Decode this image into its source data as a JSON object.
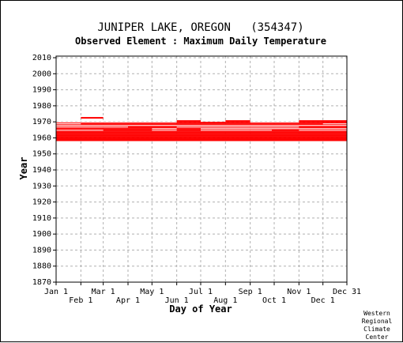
{
  "chart_data": {
    "type": "heatmap",
    "title": "JUNIPER LAKE, OREGON   (354347)",
    "subtitle": "Observed Element : Maximum Daily Temperature",
    "xlabel": "Day of Year",
    "ylabel": "Year",
    "xlim": [
      1,
      365
    ],
    "ylim": [
      1870,
      2011
    ],
    "grid": true,
    "x_ticks_upper": [
      {
        "label": "Jan 1",
        "day": 1
      },
      {
        "label": "Mar 1",
        "day": 60
      },
      {
        "label": "May 1",
        "day": 121
      },
      {
        "label": "Jul 1",
        "day": 182
      },
      {
        "label": "Sep 1",
        "day": 244
      },
      {
        "label": "Nov 1",
        "day": 305
      },
      {
        "label": "Dec 31",
        "day": 365
      }
    ],
    "x_ticks_lower": [
      {
        "label": "Feb 1",
        "day": 32
      },
      {
        "label": "Apr 1",
        "day": 91
      },
      {
        "label": "Jun 1",
        "day": 152
      },
      {
        "label": "Aug 1",
        "day": 213
      },
      {
        "label": "Oct 1",
        "day": 274
      },
      {
        "label": "Dec 1",
        "day": 335
      }
    ],
    "y_ticks": [
      1870,
      1880,
      1890,
      1900,
      1910,
      1920,
      1930,
      1940,
      1950,
      1960,
      1970,
      1980,
      1990,
      2000,
      2010
    ],
    "mark_color": "#ff0000",
    "observed_segments": [
      {
        "year": 1972,
        "start_day": 32,
        "end_day": 59
      },
      {
        "year": 1970,
        "start_day": 152,
        "end_day": 181
      },
      {
        "year": 1970,
        "start_day": 213,
        "end_day": 243
      },
      {
        "year": 1970,
        "start_day": 305,
        "end_day": 365
      },
      {
        "year": 1969,
        "start_day": 1,
        "end_day": 365
      },
      {
        "year": 1968,
        "start_day": 1,
        "end_day": 365
      },
      {
        "year": 1967,
        "start_day": 1,
        "end_day": 365
      },
      {
        "year": 1966,
        "start_day": 1,
        "end_day": 365
      },
      {
        "year": 1965,
        "start_day": 1,
        "end_day": 365
      },
      {
        "year": 1964,
        "start_day": 1,
        "end_day": 365
      },
      {
        "year": 1963,
        "start_day": 1,
        "end_day": 365
      },
      {
        "year": 1962,
        "start_day": 1,
        "end_day": 365
      },
      {
        "year": 1961,
        "start_day": 1,
        "end_day": 365
      },
      {
        "year": 1960,
        "start_day": 1,
        "end_day": 365
      },
      {
        "year": 1959,
        "start_day": 1,
        "end_day": 365
      },
      {
        "year": 1958,
        "start_day": 1,
        "end_day": 365
      }
    ],
    "missing_segments": [
      {
        "year": 1969,
        "start_day": 1,
        "end_day": 59
      },
      {
        "year": 1969,
        "start_day": 60,
        "end_day": 120
      },
      {
        "year": 1969,
        "start_day": 121,
        "end_day": 151
      },
      {
        "year": 1969,
        "start_day": 244,
        "end_day": 304
      },
      {
        "year": 1968,
        "start_day": 1,
        "end_day": 31
      },
      {
        "year": 1968,
        "start_day": 335,
        "end_day": 365
      },
      {
        "year": 1967,
        "start_day": 1,
        "end_day": 365
      },
      {
        "year": 1966,
        "start_day": 1,
        "end_day": 59
      },
      {
        "year": 1966,
        "start_day": 60,
        "end_day": 90
      },
      {
        "year": 1966,
        "start_day": 152,
        "end_day": 181
      },
      {
        "year": 1966,
        "start_day": 182,
        "end_day": 243
      },
      {
        "year": 1966,
        "start_day": 244,
        "end_day": 304
      },
      {
        "year": 1965,
        "start_day": 121,
        "end_day": 151
      },
      {
        "year": 1965,
        "start_day": 182,
        "end_day": 365
      },
      {
        "year": 1964,
        "start_day": 1,
        "end_day": 59
      },
      {
        "year": 1964,
        "start_day": 121,
        "end_day": 151
      },
      {
        "year": 1964,
        "start_day": 182,
        "end_day": 243
      },
      {
        "year": 1964,
        "start_day": 244,
        "end_day": 270
      },
      {
        "year": 1964,
        "start_day": 305,
        "end_day": 365
      }
    ],
    "credit": [
      "Western",
      "Regional",
      "Climate",
      "Center"
    ]
  }
}
